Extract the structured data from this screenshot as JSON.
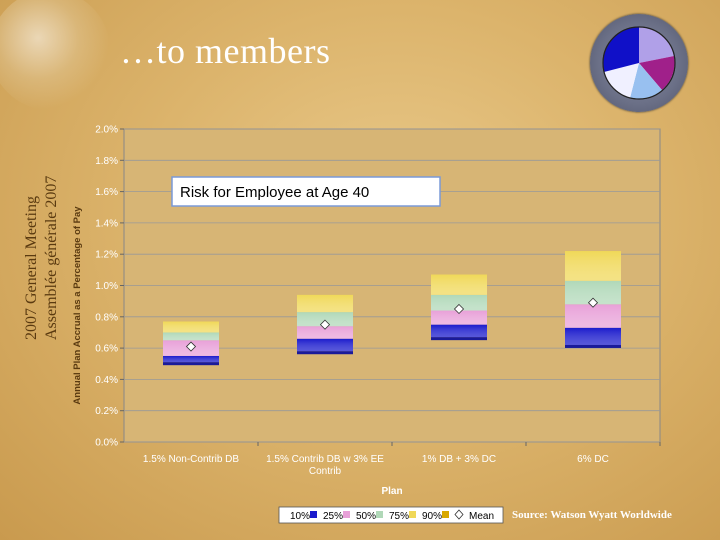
{
  "slide": {
    "title": "…to members",
    "side_line1": "2007 General Meeting",
    "side_line2": "Assemblée générale 2007",
    "source": "Source: Watson Wyatt Worldwide"
  },
  "colors": {
    "p10": "#1a1acc",
    "p25": "#e8a0d8",
    "p50": "#b0d8b8",
    "p75": "#f0d858",
    "p90": "#d8a800",
    "plot_bg": "#d7b575"
  },
  "chart_data": {
    "type": "box",
    "title": "Risk  for  Employee at Age 40",
    "xlabel": "Plan",
    "ylabel": "Annual Plan Accrual as a Percentage of Pay",
    "ylim": [
      0,
      2.0
    ],
    "y_ticks": [
      "0.0%",
      "0.2%",
      "0.4%",
      "0.6%",
      "0.8%",
      "1.0%",
      "1.2%",
      "1.4%",
      "1.6%",
      "1.8%",
      "2.0%"
    ],
    "categories": [
      "1.5% Non-Contrib DB",
      "1.5% Contrib DB w 3% EE Contrib",
      "1% DB + 3% DC",
      "6% DC"
    ],
    "percentiles": [
      {
        "p10": 0.51,
        "p25": 0.55,
        "p50": 0.65,
        "p75": 0.7,
        "p90": 0.77,
        "mean": 0.61
      },
      {
        "p10": 0.58,
        "p25": 0.66,
        "p50": 0.74,
        "p75": 0.83,
        "p90": 0.94,
        "mean": 0.75
      },
      {
        "p10": 0.67,
        "p25": 0.75,
        "p50": 0.84,
        "p75": 0.94,
        "p90": 1.07,
        "mean": 0.85
      },
      {
        "p10": 0.62,
        "p25": 0.73,
        "p50": 0.88,
        "p75": 1.03,
        "p90": 1.22,
        "mean": 0.89
      }
    ],
    "legend": [
      "10%",
      "25%",
      "50%",
      "75%",
      "90%",
      "Mean"
    ],
    "legend_position": "bottom"
  }
}
